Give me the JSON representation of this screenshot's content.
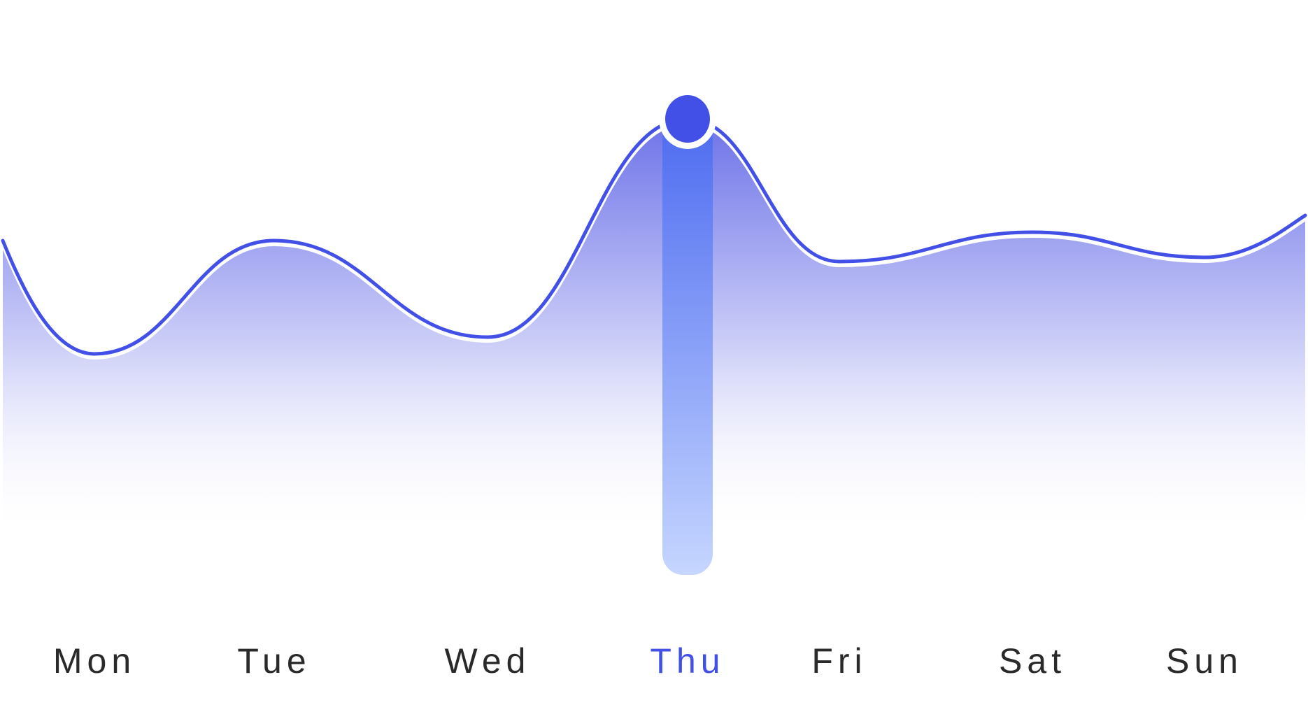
{
  "chart_data": {
    "type": "area",
    "categories": [
      "Mon",
      "Tue",
      "Wed",
      "Thu",
      "Fri",
      "Sat",
      "Sun"
    ],
    "series": [
      {
        "values": [
          44,
          71,
          48,
          100,
          66,
          73,
          67
        ]
      }
    ],
    "curve": {
      "start_value": 71,
      "end_value": 77
    },
    "highlight": {
      "category": "Thu",
      "value": 100
    },
    "ylim": [
      0,
      120
    ],
    "grid": false,
    "legend": "none",
    "title": "",
    "xlabel": "",
    "ylabel": ""
  },
  "colors": {
    "line": "#4350E8",
    "area_top": "#5D63E6",
    "area_bottom": "#FFFFFF",
    "highlight_bar_top": "#4D6BF0",
    "highlight_bar_bottom": "#C6D6FF",
    "highlight_dot": "#4350E8",
    "label_default": "#2A2A2A",
    "label_active": "#4350E8"
  }
}
